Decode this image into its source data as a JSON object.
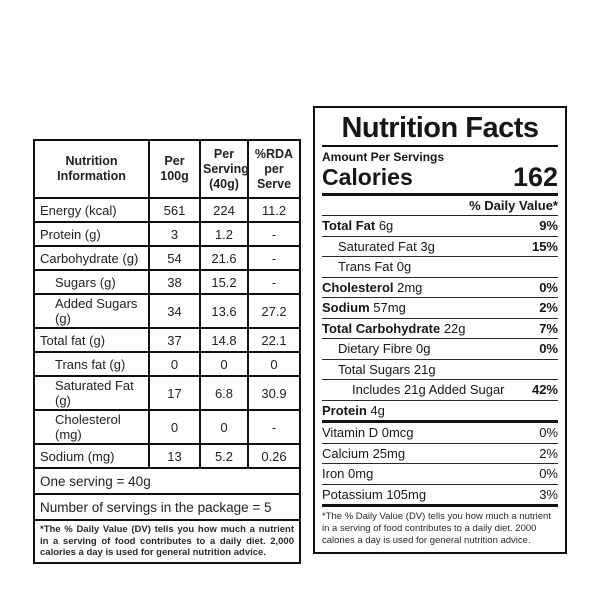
{
  "left_table": {
    "headers": [
      "Nutrition Information",
      "Per 100g",
      "Per Serving (40g)",
      "%RDA per Serve"
    ],
    "rows": [
      {
        "label": "Energy (kcal)",
        "indent": false,
        "per_100g": "561",
        "per_serving": "224",
        "rda_per_serve": "11.2"
      },
      {
        "label": "Protein (g)",
        "indent": false,
        "per_100g": "3",
        "per_serving": "1.2",
        "rda_per_serve": "-"
      },
      {
        "label": "Carbohydrate (g)",
        "indent": false,
        "per_100g": "54",
        "per_serving": "21.6",
        "rda_per_serve": "-"
      },
      {
        "label": "Sugars (g)",
        "indent": true,
        "per_100g": "38",
        "per_serving": "15.2",
        "rda_per_serve": "-"
      },
      {
        "label": "Added Sugars (g)",
        "indent": true,
        "per_100g": "34",
        "per_serving": "13.6",
        "rda_per_serve": "27.2"
      },
      {
        "label": "Total fat (g)",
        "indent": false,
        "per_100g": "37",
        "per_serving": "14.8",
        "rda_per_serve": "22.1"
      },
      {
        "label": "Trans fat (g)",
        "indent": true,
        "per_100g": "0",
        "per_serving": "0",
        "rda_per_serve": "0"
      },
      {
        "label": "Saturated Fat (g)",
        "indent": true,
        "per_100g": "17",
        "per_serving": "6.8",
        "rda_per_serve": "30.9"
      },
      {
        "label": "Cholesterol (mg)",
        "indent": true,
        "per_100g": "0",
        "per_serving": "0",
        "rda_per_serve": "-"
      },
      {
        "label": "Sodium (mg)",
        "indent": false,
        "per_100g": "13",
        "per_serving": "5.2",
        "rda_per_serve": "0.26"
      }
    ],
    "serving_note": "One serving = 40g",
    "package_note": "Number of servings in the package = 5",
    "footnote": "*The % Daily Value (DV) tells you how much a nutrient in a serving of food contributes to a daily diet. 2,000 calories a day is used for general nutrition advice."
  },
  "nutrition_facts": {
    "title": "Nutrition Facts",
    "amount_per": "Amount Per Servings",
    "calories_label": "Calories",
    "calories_value": "162",
    "daily_value_header": "% Daily Value*",
    "nutrients": [
      {
        "name": "Total Fat",
        "amount": "6g",
        "dv": "9%",
        "bold_name": true,
        "bold_dv": true,
        "indent": 0
      },
      {
        "name": "Saturated Fat",
        "amount": "3g",
        "dv": "15%",
        "bold_name": false,
        "bold_dv": true,
        "indent": 1
      },
      {
        "name": "Trans Fat",
        "amount": "0g",
        "dv": "",
        "bold_name": false,
        "bold_dv": false,
        "indent": 1
      },
      {
        "name": "Cholesterol",
        "amount": "2mg",
        "dv": "0%",
        "bold_name": true,
        "bold_dv": true,
        "indent": 0
      },
      {
        "name": "Sodium",
        "amount": "57mg",
        "dv": "2%",
        "bold_name": true,
        "bold_dv": true,
        "indent": 0
      },
      {
        "name": "Total Carbohydrate",
        "amount": "22g",
        "dv": "7%",
        "bold_name": true,
        "bold_dv": true,
        "indent": 0
      },
      {
        "name": "Dietary Fibre",
        "amount": "0g",
        "dv": "0%",
        "bold_name": false,
        "bold_dv": true,
        "indent": 1
      },
      {
        "name": "Total Sugars",
        "amount": "21g",
        "dv": "",
        "bold_name": false,
        "bold_dv": false,
        "indent": 1
      },
      {
        "name": "Includes 21g Added Sugar",
        "amount": "",
        "dv": "42%",
        "bold_name": false,
        "bold_dv": true,
        "indent": 2
      },
      {
        "name": "Protein",
        "amount": "4g",
        "dv": "",
        "bold_name": true,
        "bold_dv": false,
        "indent": 0
      }
    ],
    "vitamins": [
      {
        "name": "Vitamin D",
        "amount": "0mcg",
        "dv": "0%"
      },
      {
        "name": "Calcium",
        "amount": "25mg",
        "dv": "2%"
      },
      {
        "name": "Iron",
        "amount": "0mg",
        "dv": "0%"
      },
      {
        "name": "Potassium",
        "amount": "105mg",
        "dv": "3%"
      }
    ],
    "footnote": "*The % Daily Value (DV) tells you how much a nutrient in a serving of food contributes to a daily diet. 2000 calories a day is used for general nutrition advice."
  }
}
